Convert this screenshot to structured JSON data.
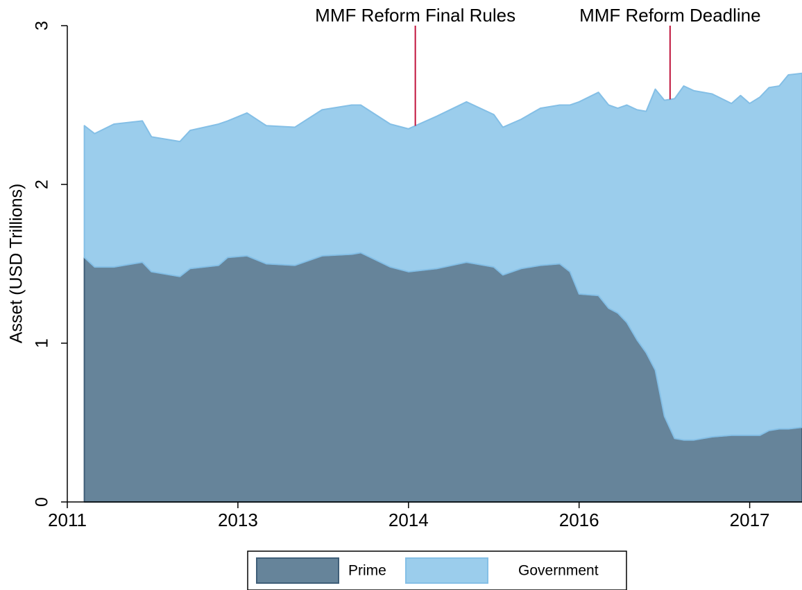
{
  "chart_data": {
    "type": "stacked_area",
    "y_label": "Asset (USD Trillions)",
    "x": [
      2011.65,
      2011.74,
      2011.91,
      2012.16,
      2012.24,
      2012.49,
      2012.58,
      2012.83,
      2012.91,
      2013.08,
      2013.25,
      2013.5,
      2013.74,
      2014.0,
      2014.08,
      2014.34,
      2014.5,
      2014.75,
      2015.01,
      2015.25,
      2015.33,
      2015.49,
      2015.66,
      2015.83,
      2015.92,
      2016.0,
      2016.17,
      2016.26,
      2016.34,
      2016.42,
      2016.51,
      2016.59,
      2016.67,
      2016.75,
      2016.84,
      2016.92,
      2017.01,
      2017.17,
      2017.34,
      2017.42,
      2017.5,
      2017.59,
      2017.67,
      2017.76,
      2017.84,
      2017.96
    ],
    "series": [
      {
        "name": "Prime",
        "color": "#66849a",
        "edge": "#3f5e78",
        "values": [
          1.54,
          1.48,
          1.48,
          1.51,
          1.45,
          1.42,
          1.47,
          1.49,
          1.54,
          1.55,
          1.5,
          1.49,
          1.55,
          1.56,
          1.57,
          1.48,
          1.45,
          1.47,
          1.51,
          1.48,
          1.43,
          1.47,
          1.49,
          1.5,
          1.45,
          1.31,
          1.3,
          1.22,
          1.19,
          1.13,
          1.02,
          0.94,
          0.83,
          0.54,
          0.4,
          0.39,
          0.39,
          0.41,
          0.42,
          0.42,
          0.42,
          0.42,
          0.45,
          0.46,
          0.46,
          0.47
        ]
      },
      {
        "name": "Government",
        "color": "#9bcdec",
        "edge": "#84bfe6",
        "values": [
          0.83,
          0.84,
          0.9,
          0.89,
          0.85,
          0.85,
          0.87,
          0.89,
          0.86,
          0.9,
          0.87,
          0.87,
          0.92,
          0.94,
          0.93,
          0.9,
          0.9,
          0.96,
          1.01,
          0.96,
          0.93,
          0.94,
          0.99,
          1.0,
          1.05,
          1.21,
          1.28,
          1.28,
          1.29,
          1.37,
          1.45,
          1.52,
          1.77,
          1.99,
          2.14,
          2.23,
          2.2,
          2.16,
          2.09,
          2.14,
          2.09,
          2.13,
          2.16,
          2.16,
          2.23,
          2.23
        ]
      }
    ],
    "xlim": [
      2011.5,
      2017.96
    ],
    "xticks": [
      {
        "value": 2011.5,
        "label": "2011"
      },
      {
        "value": 2013.0,
        "label": "2013"
      },
      {
        "value": 2014.5,
        "label": "2014"
      },
      {
        "value": 2016.0,
        "label": "2016"
      },
      {
        "value": 2017.5,
        "label": "2017"
      }
    ],
    "ylim": [
      0,
      3
    ],
    "yticks": [
      0,
      1,
      2,
      3
    ],
    "annotations": [
      {
        "text": "MMF Reform Final Rules",
        "x": 2014.56,
        "color": "#c0143c"
      },
      {
        "text": "MMF Reform Deadline",
        "x": 2016.8,
        "color": "#c0143c"
      }
    ],
    "legend": "bottom"
  }
}
